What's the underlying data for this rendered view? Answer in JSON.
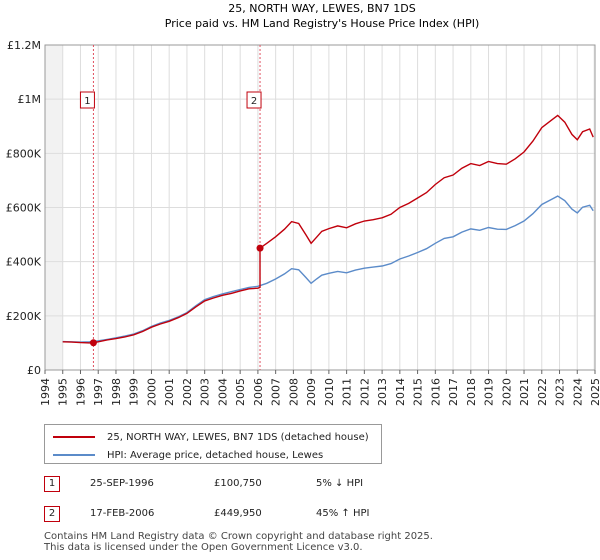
{
  "chart_data": {
    "type": "line",
    "title": "25, NORTH WAY, LEWES, BN7 1DS",
    "subtitle": "Price paid vs. HM Land Registry's House Price Index (HPI)",
    "xlim": [
      1995,
      2025
    ],
    "ylim": [
      0,
      1200000
    ],
    "x_ticks": [
      "1994",
      "1995",
      "1996",
      "1997",
      "1998",
      "1999",
      "2000",
      "2001",
      "2002",
      "2003",
      "2004",
      "2005",
      "2006",
      "2007",
      "2008",
      "2009",
      "2010",
      "2011",
      "2012",
      "2013",
      "2014",
      "2015",
      "2016",
      "2017",
      "2018",
      "2019",
      "2020",
      "2021",
      "2022",
      "2023",
      "2024",
      "2025"
    ],
    "y_ticks": [
      {
        "value": 0,
        "label": "£0"
      },
      {
        "value": 200000,
        "label": "£200K"
      },
      {
        "value": 400000,
        "label": "£400K"
      },
      {
        "value": 600000,
        "label": "£600K"
      },
      {
        "value": 800000,
        "label": "£800K"
      },
      {
        "value": 1000000,
        "label": "£1M"
      },
      {
        "value": 1200000,
        "label": "£1.2M"
      }
    ],
    "series": [
      {
        "name": "25, NORTH WAY, LEWES, BN7 1DS (detached house)",
        "color": "#c0000c",
        "x": [
          1995.0,
          1995.5,
          1996.0,
          1996.5,
          1996.73,
          1997.0,
          1997.5,
          1998.0,
          1998.5,
          1999.0,
          1999.5,
          2000.0,
          2000.5,
          2001.0,
          2001.5,
          2002.0,
          2002.5,
          2003.0,
          2003.5,
          2004.0,
          2004.5,
          2005.0,
          2005.5,
          2006.0,
          2006.12,
          2006.12,
          2006.5,
          2007.0,
          2007.5,
          2007.9,
          2008.3,
          2008.7,
          2009.0,
          2009.3,
          2009.6,
          2010.0,
          2010.5,
          2011.0,
          2011.5,
          2012.0,
          2012.5,
          2013.0,
          2013.5,
          2014.0,
          2014.5,
          2015.0,
          2015.5,
          2016.0,
          2016.5,
          2017.0,
          2017.5,
          2018.0,
          2018.5,
          2019.0,
          2019.5,
          2020.0,
          2020.5,
          2021.0,
          2021.5,
          2022.0,
          2022.5,
          2022.9,
          2023.3,
          2023.7,
          2024.0,
          2024.3,
          2024.7,
          2024.9
        ],
        "values": [
          104000,
          103000,
          101000,
          100000,
          100750,
          104000,
          111000,
          116000,
          122000,
          130000,
          142000,
          158000,
          170000,
          180000,
          193000,
          209000,
          233000,
          255000,
          266000,
          276000,
          283000,
          292000,
          300000,
          302000,
          305000,
          449950,
          468000,
          492000,
          520000,
          548000,
          541000,
          500000,
          468000,
          490000,
          512000,
          522000,
          532000,
          525000,
          540000,
          550000,
          555000,
          562000,
          575000,
          600000,
          615000,
          635000,
          655000,
          685000,
          710000,
          720000,
          745000,
          762000,
          755000,
          770000,
          762000,
          760000,
          780000,
          805000,
          845000,
          895000,
          920000,
          940000,
          915000,
          870000,
          850000,
          880000,
          890000,
          860000
        ]
      },
      {
        "name": "HPI: Average price, detached house, Lewes",
        "color": "#5b8bc9",
        "x": [
          1995.0,
          1995.5,
          1996.0,
          1996.5,
          1997.0,
          1997.5,
          1998.0,
          1998.5,
          1999.0,
          1999.5,
          2000.0,
          2000.5,
          2001.0,
          2001.5,
          2002.0,
          2002.5,
          2003.0,
          2003.5,
          2004.0,
          2004.5,
          2005.0,
          2005.5,
          2006.0,
          2006.5,
          2007.0,
          2007.5,
          2007.9,
          2008.3,
          2008.7,
          2009.0,
          2009.3,
          2009.6,
          2010.0,
          2010.5,
          2011.0,
          2011.5,
          2012.0,
          2012.5,
          2013.0,
          2013.5,
          2014.0,
          2014.5,
          2015.0,
          2015.5,
          2016.0,
          2016.5,
          2017.0,
          2017.5,
          2018.0,
          2018.5,
          2019.0,
          2019.5,
          2020.0,
          2020.5,
          2021.0,
          2021.5,
          2022.0,
          2022.5,
          2022.9,
          2023.3,
          2023.7,
          2024.0,
          2024.3,
          2024.7,
          2024.9
        ],
        "values": [
          105000,
          104000,
          103000,
          104000,
          108000,
          113000,
          119000,
          125000,
          133000,
          145000,
          161000,
          173000,
          183000,
          196000,
          212000,
          237000,
          260000,
          271000,
          281000,
          289000,
          297000,
          305000,
          309000,
          320000,
          336000,
          355000,
          374000,
          370000,
          342000,
          320000,
          336000,
          350000,
          357000,
          364000,
          359000,
          369000,
          376000,
          380000,
          384000,
          393000,
          410000,
          421000,
          434000,
          448000,
          468000,
          486000,
          492000,
          509000,
          521000,
          516000,
          526000,
          520000,
          519000,
          533000,
          550000,
          577000,
          611000,
          628000,
          642000,
          625000,
          594000,
          580000,
          601000,
          608000,
          588000
        ]
      }
    ],
    "sales": [
      {
        "num": "1",
        "x": 1996.73,
        "value": 100750
      },
      {
        "num": "2",
        "x": 2006.12,
        "value": 449950
      }
    ],
    "shaded_regions": [
      [
        1995.0,
        1995.0
      ]
    ]
  },
  "legend": {
    "property_label": "25, NORTH WAY, LEWES, BN7 1DS (detached house)",
    "hpi_label": "HPI: Average price, detached house, Lewes"
  },
  "sales_table": [
    {
      "num": "1",
      "date": "25-SEP-1996",
      "price": "£100,750",
      "hpi": "5% ↓ HPI"
    },
    {
      "num": "2",
      "date": "17-FEB-2006",
      "price": "£449,950",
      "hpi": "45% ↑ HPI"
    }
  ],
  "footer": {
    "line1": "Contains HM Land Registry data © Crown copyright and database right 2025.",
    "line2": "This data is licensed under the Open Government Licence v3.0."
  }
}
